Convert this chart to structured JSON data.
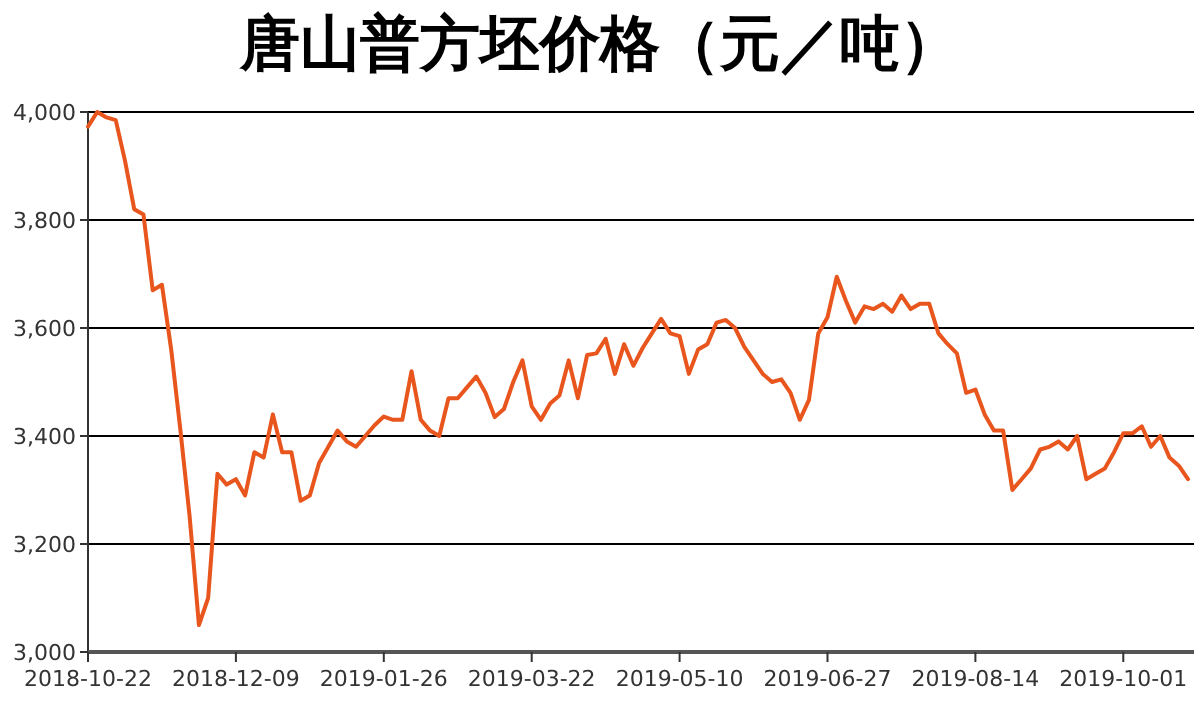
{
  "chart_data": {
    "type": "line",
    "title": "唐山普方坯价格（元／吨）",
    "categories": [
      "2018-10-22",
      null,
      null,
      null,
      null,
      null,
      null,
      null,
      null,
      null,
      null,
      null,
      null,
      null,
      null,
      null,
      "2018-12-09",
      null,
      null,
      null,
      null,
      null,
      null,
      null,
      null,
      null,
      null,
      null,
      null,
      null,
      null,
      null,
      "2019-01-26",
      null,
      null,
      null,
      null,
      null,
      null,
      null,
      null,
      null,
      null,
      null,
      null,
      null,
      null,
      null,
      "2019-03-22",
      null,
      null,
      null,
      null,
      null,
      null,
      null,
      null,
      null,
      null,
      null,
      null,
      null,
      null,
      null,
      "2019-05-10",
      null,
      null,
      null,
      null,
      null,
      null,
      null,
      null,
      null,
      null,
      null,
      null,
      null,
      null,
      null,
      "2019-06-27",
      null,
      null,
      null,
      null,
      null,
      null,
      null,
      null,
      null,
      null,
      null,
      null,
      null,
      null,
      null,
      "2019-08-14",
      null,
      null,
      null,
      null,
      null,
      null,
      null,
      null,
      null,
      null,
      null,
      null,
      null,
      null,
      null,
      "2019-10-01",
      null,
      null,
      null,
      null,
      null,
      null,
      null
    ],
    "values": [
      3973,
      4000,
      3990,
      3985,
      3910,
      3820,
      3810,
      3670,
      3680,
      3560,
      3410,
      3250,
      3050,
      3100,
      3330,
      3310,
      3320,
      3290,
      3370,
      3360,
      3440,
      3370,
      3370,
      3280,
      3290,
      3350,
      3380,
      3410,
      3390,
      3380,
      3400,
      3420,
      3436,
      3430,
      3430,
      3520,
      3430,
      3410,
      3400,
      3470,
      3470,
      3490,
      3510,
      3480,
      3435,
      3450,
      3500,
      3540,
      3455,
      3430,
      3460,
      3475,
      3540,
      3470,
      3550,
      3553,
      3580,
      3515,
      3570,
      3530,
      3563,
      3590,
      3617,
      3590,
      3585,
      3515,
      3560,
      3570,
      3610,
      3615,
      3600,
      3565,
      3540,
      3515,
      3500,
      3505,
      3480,
      3430,
      3467,
      3590,
      3620,
      3695,
      3650,
      3610,
      3640,
      3635,
      3645,
      3630,
      3660,
      3635,
      3645,
      3645,
      3590,
      3570,
      3553,
      3480,
      3486,
      3440,
      3410,
      3410,
      3300,
      3320,
      3340,
      3375,
      3380,
      3390,
      3375,
      3400,
      3320,
      3330,
      3340,
      3370,
      3405,
      3405,
      3418,
      3380,
      3400,
      3360,
      3345,
      3320
    ],
    "color": "#e8561e",
    "ylim": [
      3000,
      4000
    ],
    "yticks": [
      {
        "value": 3000,
        "label": "3,000"
      },
      {
        "value": 3200,
        "label": "3,200"
      },
      {
        "value": 3400,
        "label": "3,400"
      },
      {
        "value": 3600,
        "label": "3,600"
      },
      {
        "value": 3800,
        "label": "3,800"
      },
      {
        "value": 4000,
        "label": "4,000"
      }
    ],
    "grid": "y"
  }
}
